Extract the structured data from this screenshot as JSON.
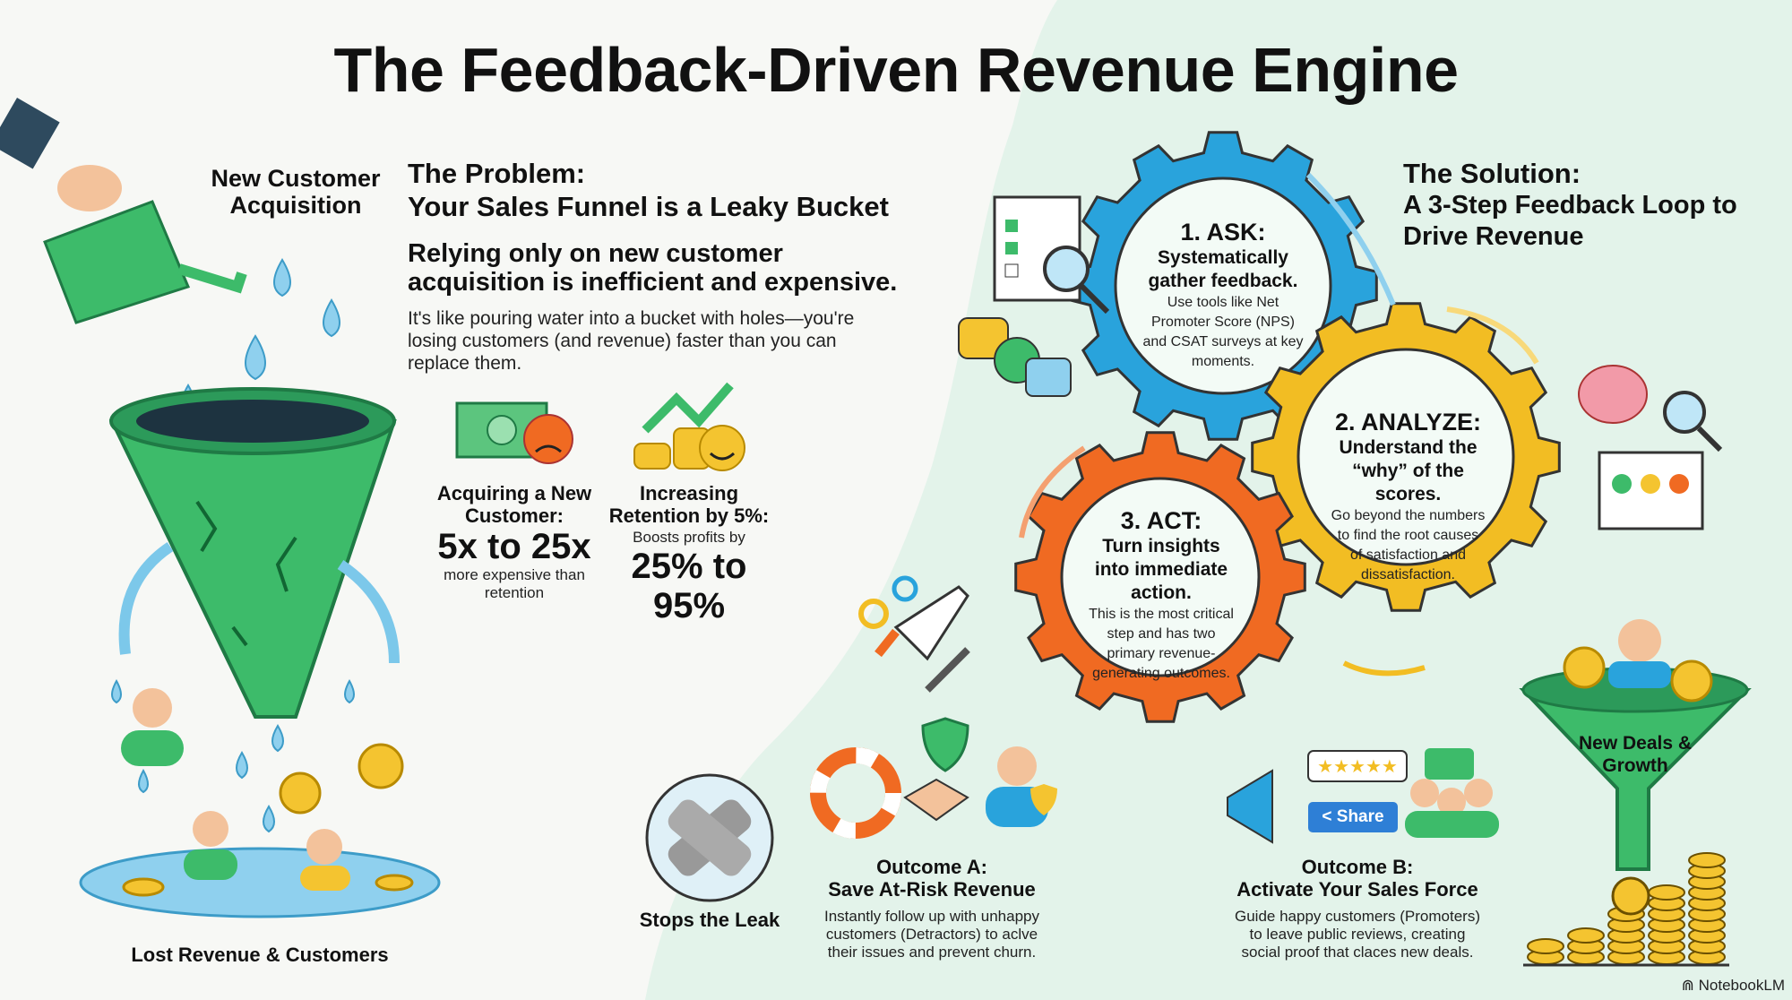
{
  "title": "The Feedback-Driven Revenue Engine",
  "colors": {
    "ask": "#29a3dc",
    "analyze": "#f2bd23",
    "act": "#f06a22",
    "green": "#3dbb6a",
    "mint": "#e3f3ea",
    "coin": "#f4c430"
  },
  "left": {
    "acquisition_label": "New Customer Acquisition",
    "lost_label": "Lost Revenue & Customers"
  },
  "problem": {
    "heading": "The Problem:",
    "subheading": "Your Sales Funnel is a Leaky Bucket",
    "lead": "Relying only on new customer acquisition is inefficient and expensive.",
    "body": "It's like pouring water into a bucket with holes—you're losing customers (and revenue) faster than you can replace them.",
    "stat1": {
      "label": "Acquiring a New Customer:",
      "value": "5x to 25x",
      "note": "more expensive than retention",
      "icons": [
        "money-bill-icon",
        "sad-face-icon"
      ]
    },
    "stat2": {
      "label": "Increasing Retention by 5%:",
      "note": "Boosts profits by",
      "value": "25% to 95%",
      "icons": [
        "growth-arrow-icon",
        "coins-icon",
        "happy-face-icon"
      ]
    }
  },
  "solution": {
    "heading": "The Solution:",
    "subheading": "A 3-Step Feedback Loop to Drive Revenue",
    "steps": [
      {
        "title": "1. ASK:",
        "sub": "Systematically gather feedback.",
        "body": "Use tools like Net Promoter Score (NPS) and CSAT surveys at key moments."
      },
      {
        "title": "2. ANALYZE:",
        "sub": "Understand the “why” of the scores.",
        "body": "Go beyond the numbers to find the root causes of satisfaction and dissatisfaction."
      },
      {
        "title": "3. ACT:",
        "sub": "Turn insights into immediate action.",
        "body": "This is the most critical step and has two primary revenue-generating outcomes."
      }
    ]
  },
  "stops_leak": "Stops the Leak",
  "outcome_a": {
    "title": "Outcome A:",
    "subtitle": "Save At-Risk Revenue",
    "body": "Instantly follow up with unhappy customers (Detractors) to aclve their issues and prevent churn."
  },
  "outcome_b": {
    "title": "Outcome B:",
    "subtitle": "Activate Your Sales Force",
    "body": "Guide happy customers (Promoters) to leave public reviews, creating social proof that claces new deals.",
    "share_label": "Share",
    "stars": 5
  },
  "new_deals": "New Deals & Growth",
  "brand": "NotebookLM"
}
